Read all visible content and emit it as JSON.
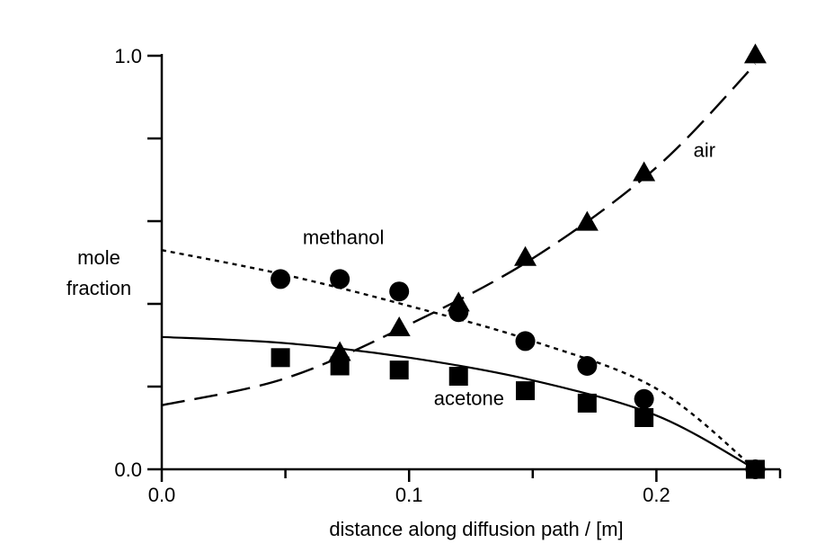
{
  "chart_data": {
    "type": "scatter",
    "title": "",
    "xlabel": "distance along diffusion path / [m]",
    "ylabel": "mole\nfraction",
    "xlim": [
      0.0,
      0.25
    ],
    "ylim": [
      0.0,
      1.0
    ],
    "x_ticks": [
      0.0,
      0.1,
      0.2
    ],
    "x_tick_labels": [
      "0.0",
      "0.1",
      "0.2"
    ],
    "y_ticks": [
      0.0,
      0.2,
      0.4,
      0.6,
      0.8,
      1.0
    ],
    "y_tick_labels": [
      "0.0",
      "",
      "",
      "",
      "",
      "1.0"
    ],
    "grid": false,
    "series": [
      {
        "name": "methanol",
        "marker": "circle",
        "line_style": "dotted",
        "color": "#000000",
        "points": {
          "x": [
            0.048,
            0.072,
            0.096,
            0.12,
            0.147,
            0.172,
            0.195,
            0.24
          ],
          "y": [
            0.46,
            0.46,
            0.43,
            0.38,
            0.31,
            0.25,
            0.17,
            0.0
          ]
        },
        "fit": {
          "x": [
            0.0,
            0.05,
            0.1,
            0.15,
            0.2,
            0.24
          ],
          "y": [
            0.53,
            0.47,
            0.395,
            0.31,
            0.195,
            0.0
          ]
        }
      },
      {
        "name": "acetone",
        "marker": "square",
        "line_style": "solid",
        "color": "#000000",
        "points": {
          "x": [
            0.048,
            0.072,
            0.096,
            0.12,
            0.147,
            0.172,
            0.195,
            0.24
          ],
          "y": [
            0.27,
            0.25,
            0.24,
            0.225,
            0.19,
            0.16,
            0.125,
            0.0
          ]
        },
        "fit": {
          "x": [
            0.0,
            0.05,
            0.1,
            0.15,
            0.2,
            0.24
          ],
          "y": [
            0.32,
            0.305,
            0.27,
            0.215,
            0.13,
            0.0
          ]
        }
      },
      {
        "name": "air",
        "marker": "triangle",
        "line_style": "dashed",
        "color": "#000000",
        "points": {
          "x": [
            0.072,
            0.096,
            0.12,
            0.147,
            0.172,
            0.195,
            0.24
          ],
          "y": [
            0.28,
            0.34,
            0.4,
            0.51,
            0.595,
            0.715,
            1.0
          ]
        },
        "fit": {
          "x": [
            0.0,
            0.05,
            0.1,
            0.15,
            0.2,
            0.24
          ],
          "y": [
            0.155,
            0.22,
            0.35,
            0.51,
            0.73,
            0.98
          ]
        }
      }
    ],
    "annotations": [
      {
        "text": "methanol",
        "x": 0.057,
        "y": 0.545
      },
      {
        "text": "air",
        "x": 0.215,
        "y": 0.755
      },
      {
        "text": "acetone",
        "x": 0.11,
        "y": 0.155
      }
    ]
  }
}
